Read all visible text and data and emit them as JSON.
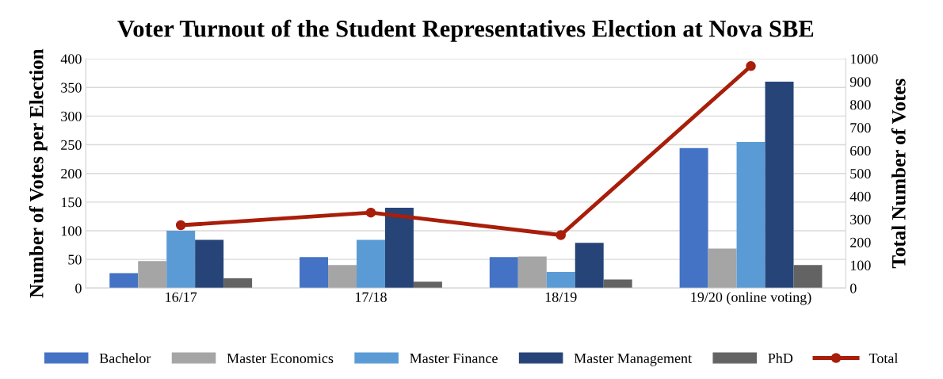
{
  "chart_data": {
    "type": "bar",
    "title": "Voter Turnout of the Student Representatives Election at Nova SBE",
    "ylabel": "Number of Votes per Election",
    "y2label": "Total Number of Votes",
    "categories": [
      "16/17",
      "17/18",
      "18/19",
      "19/20 (online voting)"
    ],
    "series": [
      {
        "name": "Bachelor",
        "color": "#4472c4",
        "values": [
          26,
          54,
          54,
          244
        ]
      },
      {
        "name": "Master Economics",
        "color": "#a5a5a5",
        "values": [
          47,
          40,
          55,
          69
        ]
      },
      {
        "name": "Master Finance",
        "color": "#5b9bd5",
        "values": [
          100,
          84,
          28,
          255
        ]
      },
      {
        "name": "Master Management",
        "color": "#264478",
        "values": [
          84,
          140,
          79,
          360
        ]
      },
      {
        "name": "PhD",
        "color": "#636363",
        "values": [
          17,
          11,
          15,
          40
        ]
      },
      {
        "name": "Total",
        "color": "#a81e0a",
        "type": "line",
        "axis": "y2",
        "values": [
          274,
          329,
          231,
          968
        ]
      }
    ],
    "ylim": [
      0,
      400
    ],
    "yticks": [
      0,
      50,
      100,
      150,
      200,
      250,
      300,
      350,
      400
    ],
    "y2lim": [
      0,
      1000
    ],
    "y2ticks": [
      0,
      100,
      200,
      300,
      400,
      500,
      600,
      700,
      800,
      900,
      1000
    ],
    "grid": "y",
    "legend": "bottom",
    "marker": "circle"
  }
}
